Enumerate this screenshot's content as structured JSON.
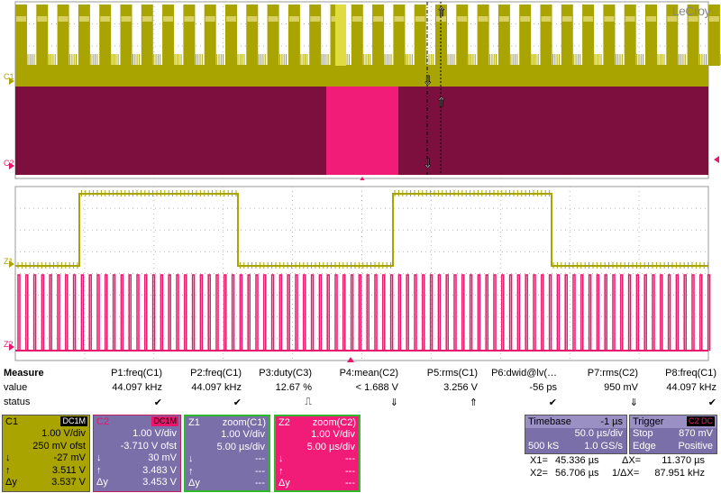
{
  "brand": "LeCroy",
  "trace_labels": {
    "c1": "C1",
    "c2": "C2",
    "z1": "Z1",
    "z2": "Z2"
  },
  "colors": {
    "c1": "#aaa400",
    "c2": "#e8166c",
    "c2_fill": "#7d0f3e",
    "c2_highlight": "#f01c78",
    "z_box": "#2eb82e",
    "math_box": "#7a6fa8"
  },
  "measure": {
    "title": "Measure",
    "row_labels": {
      "value": "value",
      "status": "status"
    },
    "params": [
      {
        "name": "P1:freq(C1)",
        "value": "44.097 kHz",
        "status": "✔"
      },
      {
        "name": "P2:freq(C1)",
        "value": "44.097 kHz",
        "status": "✔"
      },
      {
        "name": "P3:duty(C3)",
        "value": "12.67 %",
        "status": "⎍"
      },
      {
        "name": "P4:mean(C2)",
        "value": "< 1.688 V",
        "status": "⇓"
      },
      {
        "name": "P5:rms(C1)",
        "value": "3.256 V",
        "status": "⇑"
      },
      {
        "name": "P6:dwid@lv(…",
        "value": "-56 ps",
        "status": "✔"
      },
      {
        "name": "P7:rms(C2)",
        "value": "950 mV",
        "status": "⇓"
      },
      {
        "name": "P8:freq(C1)",
        "value": "44.097 kHz",
        "status": "✔"
      }
    ]
  },
  "channels": {
    "c1": {
      "title": "C1",
      "badge": "DC1M",
      "vdiv": "1.00 V/div",
      "offset": "250 mV ofst",
      "down": "-27 mV",
      "up": "3.511 V",
      "delta": "3.537 V"
    },
    "c2": {
      "title": "C2",
      "badge": "DC1M",
      "vdiv": "1.00 V/div",
      "offset": "-3.710 V ofst",
      "down": "30 mV",
      "up": "3.483 V",
      "delta": "3.453 V"
    },
    "z1": {
      "title": "Z1",
      "source": "zoom(C1)",
      "vdiv": "1.00 V/div",
      "tdiv": "5.00 µs/div",
      "down": "---",
      "up": "---",
      "delta": "---"
    },
    "z2": {
      "title": "Z2",
      "source": "zoom(C2)",
      "vdiv": "1.00 V/div",
      "tdiv": "5.00 µs/div",
      "down": "---",
      "up": "---",
      "delta": "---"
    }
  },
  "cursor_symbols": {
    "down": "↓",
    "up": "↑",
    "delta": "Δy"
  },
  "timebase": {
    "title": "Timebase",
    "delay": "-1 µs",
    "tdiv": "50.0 µs/div",
    "samples": "500 kS",
    "rate": "1.0 GS/s"
  },
  "trigger": {
    "title": "Trigger",
    "badge": "C2 DC",
    "mode": "Stop",
    "level": "870 mV",
    "type": "Edge",
    "slope": "Positive"
  },
  "cursors": {
    "x1_label": "X1=",
    "x1": "45.336 µs",
    "dx_label": "ΔX=",
    "dx": "11.370 µs",
    "x2_label": "X2=",
    "x2": "56.706 µs",
    "inv_label": "1/ΔX=",
    "inv": "87.951 kHz"
  }
}
